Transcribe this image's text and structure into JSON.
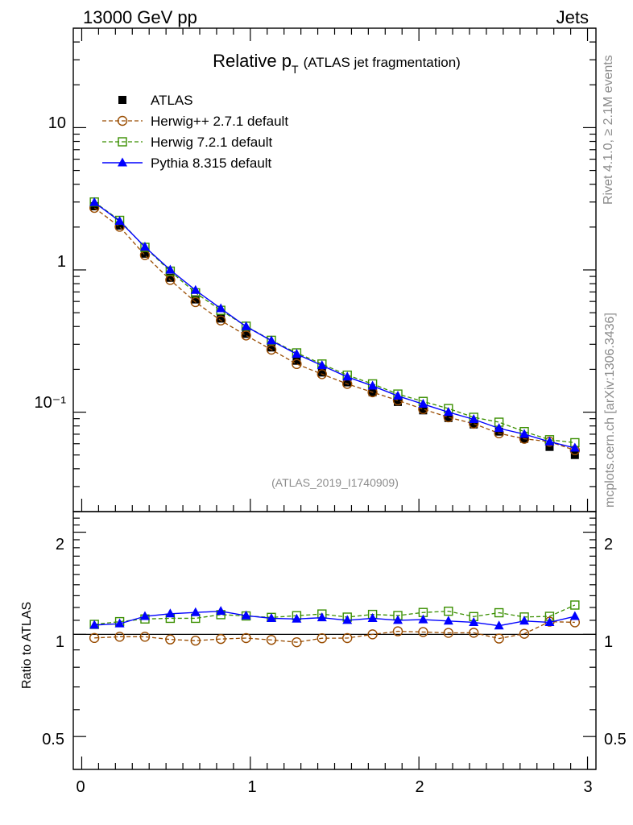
{
  "header": {
    "left": "13000 GeV pp",
    "right": "Jets"
  },
  "side": {
    "rivet": "Rivet 4.1.0, ≥ 2.1M events",
    "mcplots": "mcplots.cern.ch [arXiv:1306.3436]"
  },
  "title": {
    "main": "Relative p",
    "sub": "T",
    "paren": "(ATLAS jet fragmentation)"
  },
  "analysis_id": "(ATLAS_2019_I1740909)",
  "ratio_ylabel": "Ratio to ATLAS",
  "legend": [
    {
      "key": "atlas",
      "label": "ATLAS"
    },
    {
      "key": "herwigpp",
      "label": "Herwig++ 2.7.1 default"
    },
    {
      "key": "herwig7",
      "label": "Herwig 7.2.1 default"
    },
    {
      "key": "pythia",
      "label": "Pythia 8.315 default"
    }
  ],
  "chart_data": {
    "type": "line",
    "title": "Relative pT (ATLAS jet fragmentation)",
    "xlabel": "",
    "ylabel": "",
    "xlim": [
      -0.05,
      3.05
    ],
    "ylim_main": [
      0.02,
      50
    ],
    "yscale_main": "log",
    "ylim_ratio": [
      0.4,
      2.3
    ],
    "yscale_ratio": "log",
    "x_ticks": [
      "0",
      "1",
      "2",
      "3"
    ],
    "y_ticks_main": [
      "10",
      "1",
      "10⁻¹"
    ],
    "y_ticks_ratio": [
      "2",
      "1",
      "0.5"
    ],
    "colors": {
      "atlas": "#000000",
      "herwigpp": "#994c00",
      "herwig7": "#3a8f00",
      "pythia": "#0000ff"
    },
    "x": [
      0.075,
      0.225,
      0.375,
      0.525,
      0.675,
      0.825,
      0.975,
      1.125,
      1.275,
      1.425,
      1.575,
      1.725,
      1.875,
      2.025,
      2.175,
      2.325,
      2.475,
      2.625,
      2.775,
      2.925
    ],
    "series": [
      {
        "key": "atlas",
        "name": "ATLAS",
        "values": [
          2.8,
          2.05,
          1.3,
          0.88,
          0.62,
          0.455,
          0.355,
          0.285,
          0.23,
          0.19,
          0.162,
          0.138,
          0.118,
          0.103,
          0.091,
          0.082,
          0.073,
          0.065,
          0.057,
          0.05
        ]
      },
      {
        "key": "herwigpp",
        "name": "Herwig++ 2.7.1 default",
        "values": [
          2.73,
          2.01,
          1.27,
          0.85,
          0.594,
          0.441,
          0.346,
          0.275,
          0.218,
          0.185,
          0.158,
          0.138,
          0.121,
          0.105,
          0.092,
          0.083,
          0.071,
          0.065,
          0.062,
          0.054
        ]
      },
      {
        "key": "herwig7",
        "name": "Herwig 7.2.1 default",
        "values": [
          3.0,
          2.23,
          1.44,
          0.98,
          0.69,
          0.52,
          0.402,
          0.32,
          0.261,
          0.218,
          0.182,
          0.158,
          0.134,
          0.119,
          0.106,
          0.092,
          0.085,
          0.073,
          0.064,
          0.061
        ]
      },
      {
        "key": "pythia",
        "name": "Pythia 8.315 default",
        "values": [
          2.98,
          2.2,
          1.45,
          1.0,
          0.72,
          0.535,
          0.4,
          0.318,
          0.256,
          0.213,
          0.177,
          0.153,
          0.13,
          0.114,
          0.1,
          0.089,
          0.077,
          0.07,
          0.062,
          0.056
        ]
      }
    ],
    "ratio_series": [
      {
        "key": "herwigpp",
        "name": "Herwig++ 2.7.1 default",
        "values": [
          0.976,
          0.984,
          0.984,
          0.966,
          0.958,
          0.969,
          0.975,
          0.963,
          0.948,
          0.974,
          0.975,
          1.0,
          1.021,
          1.016,
          1.01,
          1.011,
          0.972,
          1.004,
          1.09,
          1.085
        ]
      },
      {
        "key": "herwig7",
        "name": "Herwig 7.2.1 default",
        "values": [
          1.07,
          1.09,
          1.11,
          1.115,
          1.115,
          1.143,
          1.133,
          1.122,
          1.135,
          1.148,
          1.124,
          1.145,
          1.136,
          1.16,
          1.17,
          1.128,
          1.158,
          1.125,
          1.13,
          1.22
        ]
      },
      {
        "key": "pythia",
        "name": "Pythia 8.315 default",
        "values": [
          1.065,
          1.075,
          1.13,
          1.15,
          1.16,
          1.17,
          1.135,
          1.115,
          1.11,
          1.12,
          1.1,
          1.115,
          1.1,
          1.105,
          1.095,
          1.085,
          1.06,
          1.095,
          1.085,
          1.13
        ]
      }
    ]
  }
}
